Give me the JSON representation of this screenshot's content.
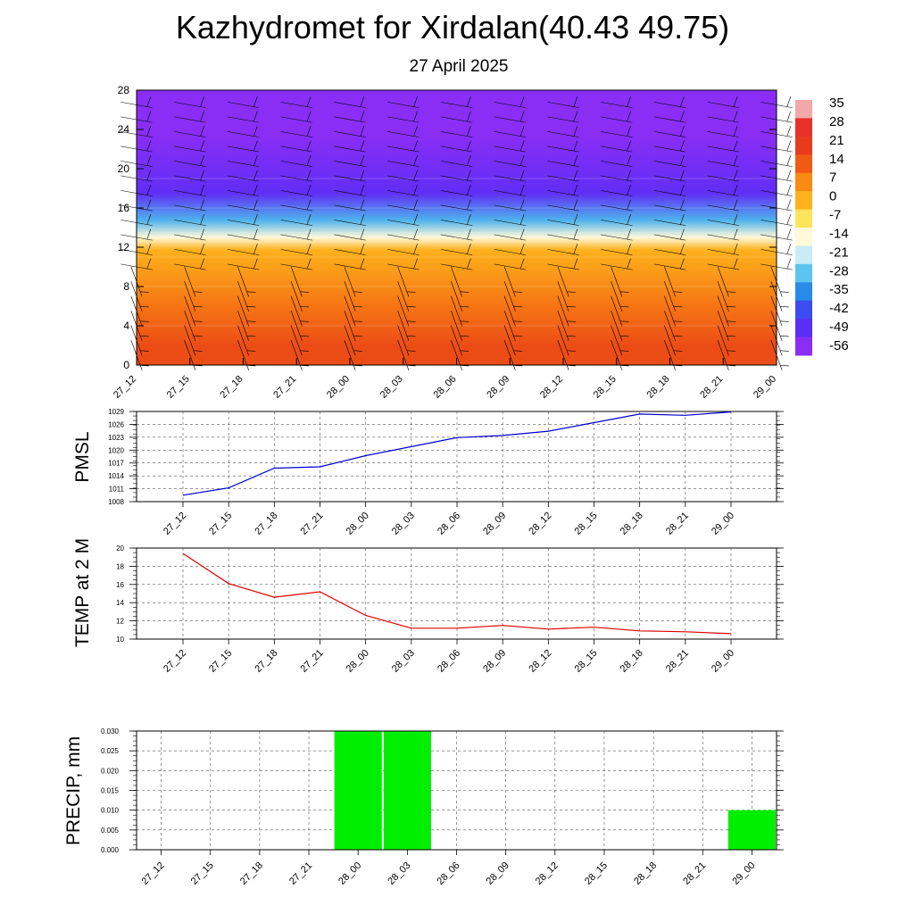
{
  "title": "Kazhydromet for Xirdalan(40.43 49.75)",
  "subtitle": "27 April 2025",
  "chart_data": [
    {
      "type": "heatmap",
      "description_axis": "height",
      "y_ticks": [
        0,
        4,
        8,
        12,
        16,
        20,
        24,
        28
      ],
      "ylim": [
        0,
        28
      ],
      "x_ticks": [
        "27_12",
        "27_15",
        "27_18",
        "27_21",
        "28_00",
        "28_03",
        "28_06",
        "28_09",
        "28_12",
        "28_15",
        "28_18",
        "28_21",
        "29_00"
      ],
      "temperature_bands": [
        {
          "y_from": 0,
          "y_to": 4,
          "value": 17
        },
        {
          "y_from": 4,
          "y_to": 8,
          "value": 10
        },
        {
          "y_from": 8,
          "y_to": 11,
          "value": 4
        },
        {
          "y_from": 11,
          "y_to": 12.5,
          "value": 0
        },
        {
          "y_from": 12.5,
          "y_to": 13.5,
          "value": -14
        },
        {
          "y_from": 13.5,
          "y_to": 16,
          "value": -30
        },
        {
          "y_from": 16,
          "y_to": 19,
          "value": -50
        },
        {
          "y_from": 19,
          "y_to": 28,
          "value": -56
        }
      ],
      "colorbar": {
        "labels": [
          "35",
          "28",
          "21",
          "14",
          "7",
          "0",
          "-7",
          "-14",
          "-21",
          "-28",
          "-35",
          "-42",
          "-49",
          "-56"
        ],
        "colors": [
          "#f2a8a8",
          "#e8302a",
          "#e63c1c",
          "#f05a14",
          "#fa8a14",
          "#fdb21e",
          "#fde45a",
          "#fff9d9",
          "#c9ecf7",
          "#5cc4ef",
          "#2a8ae8",
          "#3d4cf0",
          "#5a2ef5",
          "#8a2ef5"
        ]
      },
      "wind_barbs": true
    },
    {
      "type": "line",
      "ylabel": "PMSL",
      "ylim": [
        1008,
        1029
      ],
      "y_ticks": [
        1008,
        1011,
        1014,
        1017,
        1020,
        1023,
        1026,
        1029
      ],
      "x": [
        "27_12",
        "27_15",
        "27_18",
        "27_21",
        "28_00",
        "28_03",
        "28_06",
        "28_09",
        "28_12",
        "28_15",
        "28_18",
        "28_21",
        "29_00"
      ],
      "series": [
        {
          "color": "#0000cc",
          "values": [
            1009.5,
            1011.2,
            1015.8,
            1016.1,
            1018.7,
            1020.8,
            1022.9,
            1023.4,
            1024.4,
            1026.4,
            1028.4,
            1028.1,
            1028.9
          ]
        }
      ],
      "grid": true
    },
    {
      "type": "line",
      "ylabel": "TEMP at 2 M",
      "ylim": [
        10,
        20
      ],
      "y_ticks": [
        10,
        12,
        14,
        16,
        18,
        20
      ],
      "x": [
        "27_12",
        "27_15",
        "27_18",
        "27_21",
        "28_00",
        "28_03",
        "28_06",
        "28_09",
        "28_12",
        "28_15",
        "28_18",
        "28_21",
        "29_00"
      ],
      "series": [
        {
          "color": "#dd0000",
          "values": [
            19.4,
            16.1,
            14.6,
            15.2,
            12.6,
            11.2,
            11.2,
            11.5,
            11.1,
            11.3,
            10.9,
            10.8,
            10.6
          ]
        }
      ],
      "grid": true
    },
    {
      "type": "bar",
      "ylabel": "PRECIP, mm",
      "ylim": [
        0,
        0.03
      ],
      "y_ticks": [
        "0.000",
        "0.005",
        "0.010",
        "0.015",
        "0.020",
        "0.025",
        "0.030"
      ],
      "categories": [
        "27_12",
        "27_15",
        "27_18",
        "27_21",
        "28_00",
        "28_03",
        "28_06",
        "28_09",
        "28_12",
        "28_15",
        "28_18",
        "28_21",
        "29_00"
      ],
      "values": [
        0,
        0,
        0,
        0,
        0.03,
        0.03,
        0,
        0,
        0,
        0,
        0,
        0,
        0.01
      ],
      "bar_color": "#00ee00",
      "grid": true
    }
  ]
}
